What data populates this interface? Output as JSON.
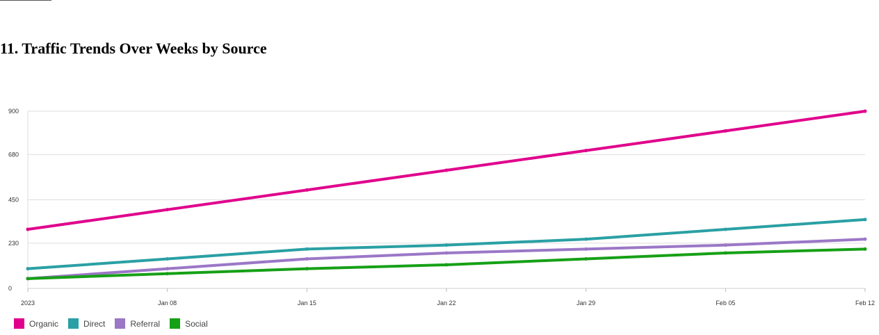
{
  "title": "11. Traffic Trends Over Weeks by Source",
  "chart_data": {
    "type": "line",
    "x": [
      "2023-01-01",
      "2023-01-08",
      "2023-01-15",
      "2023-01-22",
      "2023-01-29",
      "2023-02-05",
      "2023-02-12"
    ],
    "x_tick_labels": [
      "2023",
      "Jan 08",
      "Jan 15",
      "Jan 22",
      "Jan 29",
      "Feb 05",
      "Feb 12"
    ],
    "y_ticks": [
      0,
      230,
      450,
      680,
      900
    ],
    "ylim": [
      0,
      900
    ],
    "grid": true,
    "legend_position": "bottom-left",
    "series": [
      {
        "name": "Organic",
        "color": "#e0008c",
        "values": [
          300,
          400,
          500,
          600,
          700,
          800,
          900
        ]
      },
      {
        "name": "Direct",
        "color": "#2aa0a4",
        "values": [
          100,
          150,
          200,
          220,
          250,
          300,
          350
        ]
      },
      {
        "name": "Referral",
        "color": "#9b77c7",
        "values": [
          50,
          100,
          150,
          180,
          200,
          220,
          250
        ]
      },
      {
        "name": "Social",
        "color": "#16a016",
        "values": [
          50,
          75,
          100,
          120,
          150,
          180,
          200
        ]
      }
    ]
  }
}
